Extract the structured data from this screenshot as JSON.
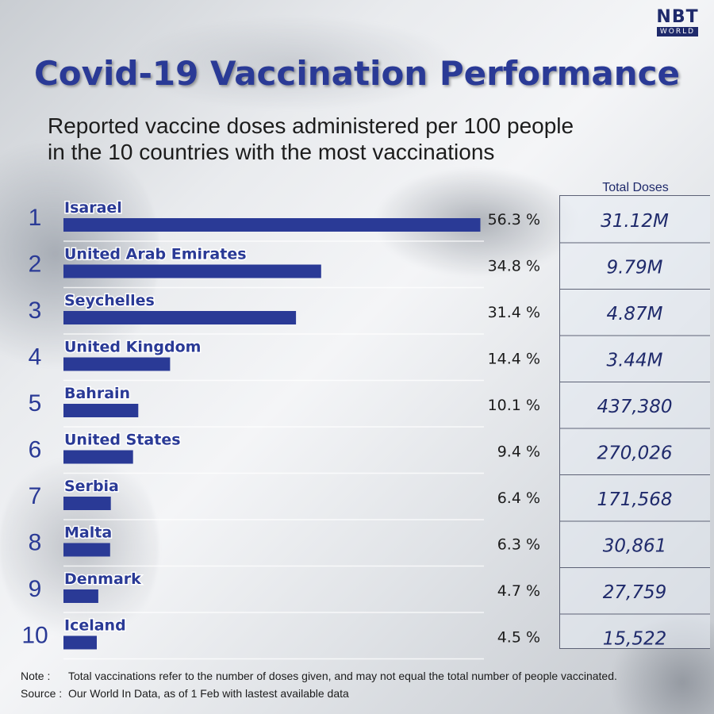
{
  "brand": {
    "logo_main": "NBT",
    "logo_sub": "WORLD"
  },
  "header": {
    "title": "Covid-19 Vaccination Performance",
    "subtitle_line1": "Reported vaccine doses administered per 100 people",
    "subtitle_line2": "in the 10 countries with the most vaccinations"
  },
  "table_header": "Total Doses",
  "colors": {
    "bar": "#2a3a96",
    "title": "#2a3a96",
    "text_dark": "#1c1c1c",
    "total_text": "#1f2a6b"
  },
  "chart_data": {
    "type": "bar",
    "orientation": "horizontal",
    "title": "Covid-19 Vaccination Performance",
    "subtitle": "Reported vaccine doses administered per 100 people in the 10 countries with the most vaccinations",
    "ranks": [
      "1",
      "2",
      "3",
      "4",
      "5",
      "6",
      "7",
      "8",
      "9",
      "10"
    ],
    "categories": [
      "Isarael",
      "United Arab Emirates",
      "Seychelles",
      "United Kingdom",
      "Bahrain",
      "United States",
      "Serbia",
      "Malta",
      "Denmark",
      "Iceland"
    ],
    "values": [
      56.3,
      34.8,
      31.4,
      14.4,
      10.1,
      9.4,
      6.4,
      6.3,
      4.7,
      4.5
    ],
    "value_labels": [
      "56.3 %",
      "34.8 %",
      "31.4 %",
      "14.4 %",
      "10.1 %",
      "9.4 %",
      "6.4 %",
      "6.3 %",
      "4.7 %",
      "4.5 %"
    ],
    "total_doses": [
      "31.12M",
      "9.79M",
      "4.87M",
      "3.44M",
      "437,380",
      "270,026",
      "171,568",
      "30,861",
      "27,759",
      "15,522"
    ],
    "xlim": [
      0,
      60
    ]
  },
  "footer": {
    "note_label": "Note :",
    "note_text": "Total vaccinations refer to the number of doses given,  and may not equal the total number of people vaccinated.",
    "source_label": "Source :",
    "source_text": "Our World In Data, as of 1 Feb with lastest available data"
  }
}
